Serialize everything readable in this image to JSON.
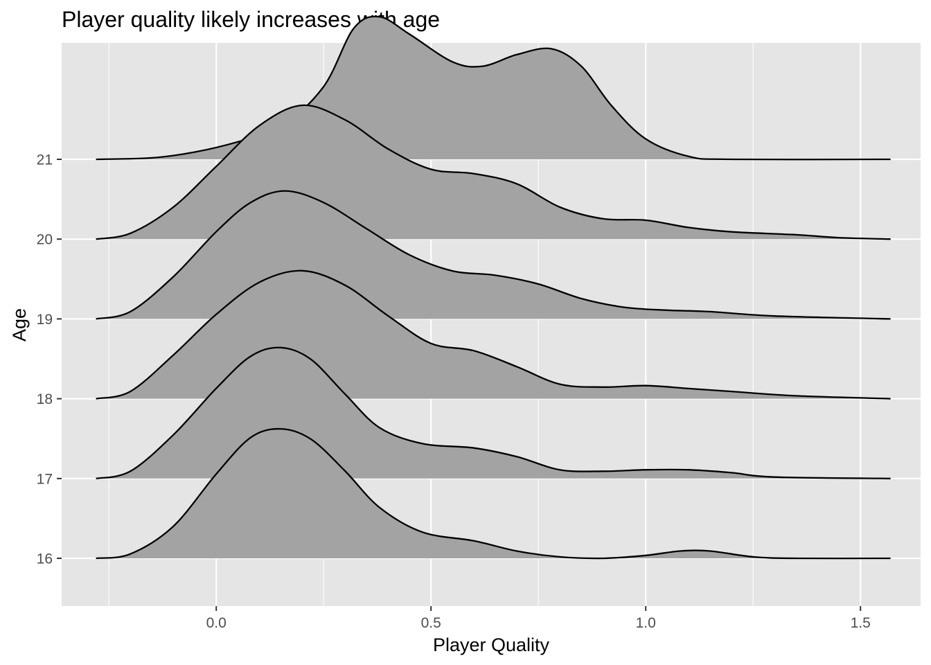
{
  "chart_data": {
    "type": "ridgeline",
    "title": "Player quality likely increases with age",
    "xlabel": "Player Quality",
    "ylabel": "Age",
    "xlim": [
      -0.36,
      1.64
    ],
    "x_ticks": [
      0.0,
      0.5,
      1.0,
      1.5
    ],
    "x_tick_labels": [
      "0.0",
      "0.5",
      "1.0",
      "1.5"
    ],
    "categories": [
      "16",
      "17",
      "18",
      "19",
      "20",
      "21"
    ],
    "density_x_range": [
      -0.28,
      1.57
    ],
    "grid": true,
    "colors": {
      "panel_background": "#e5e5e5",
      "grid_line": "#ffffff",
      "ridge_fill": "#a3a3a3",
      "ridge_line": "#000000",
      "tick_label": "#4d4d4d"
    },
    "series": [
      {
        "name": "16",
        "points": [
          [
            -0.28,
            0.0
          ],
          [
            -0.2,
            0.03
          ],
          [
            -0.1,
            0.22
          ],
          [
            0.0,
            0.58
          ],
          [
            0.08,
            0.83
          ],
          [
            0.15,
            0.89
          ],
          [
            0.22,
            0.82
          ],
          [
            0.3,
            0.6
          ],
          [
            0.38,
            0.35
          ],
          [
            0.48,
            0.18
          ],
          [
            0.6,
            0.12
          ],
          [
            0.7,
            0.05
          ],
          [
            0.8,
            0.01
          ],
          [
            0.9,
            0.0
          ],
          [
            1.0,
            0.02
          ],
          [
            1.08,
            0.05
          ],
          [
            1.15,
            0.05
          ],
          [
            1.25,
            0.01
          ],
          [
            1.35,
            0.0
          ],
          [
            1.57,
            0.0
          ]
        ]
      },
      {
        "name": "17",
        "points": [
          [
            -0.28,
            0.0
          ],
          [
            -0.2,
            0.05
          ],
          [
            -0.1,
            0.3
          ],
          [
            0.0,
            0.62
          ],
          [
            0.08,
            0.84
          ],
          [
            0.15,
            0.9
          ],
          [
            0.22,
            0.82
          ],
          [
            0.3,
            0.58
          ],
          [
            0.38,
            0.35
          ],
          [
            0.48,
            0.24
          ],
          [
            0.6,
            0.21
          ],
          [
            0.7,
            0.15
          ],
          [
            0.8,
            0.06
          ],
          [
            0.9,
            0.05
          ],
          [
            1.0,
            0.06
          ],
          [
            1.1,
            0.06
          ],
          [
            1.2,
            0.04
          ],
          [
            1.3,
            0.01
          ],
          [
            1.57,
            0.0
          ]
        ]
      },
      {
        "name": "18",
        "points": [
          [
            -0.28,
            0.0
          ],
          [
            -0.2,
            0.05
          ],
          [
            -0.1,
            0.3
          ],
          [
            0.0,
            0.58
          ],
          [
            0.1,
            0.8
          ],
          [
            0.2,
            0.88
          ],
          [
            0.3,
            0.78
          ],
          [
            0.4,
            0.57
          ],
          [
            0.5,
            0.38
          ],
          [
            0.6,
            0.33
          ],
          [
            0.7,
            0.22
          ],
          [
            0.8,
            0.1
          ],
          [
            0.9,
            0.08
          ],
          [
            1.0,
            0.09
          ],
          [
            1.1,
            0.07
          ],
          [
            1.2,
            0.05
          ],
          [
            1.35,
            0.02
          ],
          [
            1.57,
            0.0
          ]
        ]
      },
      {
        "name": "19",
        "points": [
          [
            -0.28,
            0.0
          ],
          [
            -0.2,
            0.05
          ],
          [
            -0.1,
            0.29
          ],
          [
            0.0,
            0.6
          ],
          [
            0.08,
            0.8
          ],
          [
            0.16,
            0.88
          ],
          [
            0.25,
            0.8
          ],
          [
            0.35,
            0.62
          ],
          [
            0.45,
            0.44
          ],
          [
            0.55,
            0.33
          ],
          [
            0.65,
            0.3
          ],
          [
            0.75,
            0.24
          ],
          [
            0.85,
            0.14
          ],
          [
            0.95,
            0.08
          ],
          [
            1.05,
            0.06
          ],
          [
            1.15,
            0.05
          ],
          [
            1.3,
            0.02
          ],
          [
            1.57,
            0.0
          ]
        ]
      },
      {
        "name": "20",
        "points": [
          [
            -0.28,
            0.0
          ],
          [
            -0.2,
            0.04
          ],
          [
            -0.1,
            0.22
          ],
          [
            0.0,
            0.5
          ],
          [
            0.1,
            0.78
          ],
          [
            0.2,
            0.92
          ],
          [
            0.3,
            0.82
          ],
          [
            0.4,
            0.62
          ],
          [
            0.5,
            0.48
          ],
          [
            0.6,
            0.45
          ],
          [
            0.7,
            0.38
          ],
          [
            0.8,
            0.22
          ],
          [
            0.9,
            0.14
          ],
          [
            1.0,
            0.13
          ],
          [
            1.1,
            0.08
          ],
          [
            1.2,
            0.05
          ],
          [
            1.35,
            0.03
          ],
          [
            1.45,
            0.01
          ],
          [
            1.57,
            0.0
          ]
        ]
      },
      {
        "name": "21",
        "points": [
          [
            -0.28,
            0.0
          ],
          [
            -0.15,
            0.01
          ],
          [
            -0.05,
            0.05
          ],
          [
            0.05,
            0.12
          ],
          [
            0.15,
            0.22
          ],
          [
            0.25,
            0.5
          ],
          [
            0.32,
            0.9
          ],
          [
            0.38,
            0.98
          ],
          [
            0.45,
            0.86
          ],
          [
            0.55,
            0.67
          ],
          [
            0.62,
            0.64
          ],
          [
            0.7,
            0.72
          ],
          [
            0.78,
            0.76
          ],
          [
            0.85,
            0.64
          ],
          [
            0.92,
            0.37
          ],
          [
            1.0,
            0.14
          ],
          [
            1.1,
            0.02
          ],
          [
            1.2,
            0.0
          ],
          [
            1.57,
            0.0
          ]
        ]
      }
    ]
  }
}
